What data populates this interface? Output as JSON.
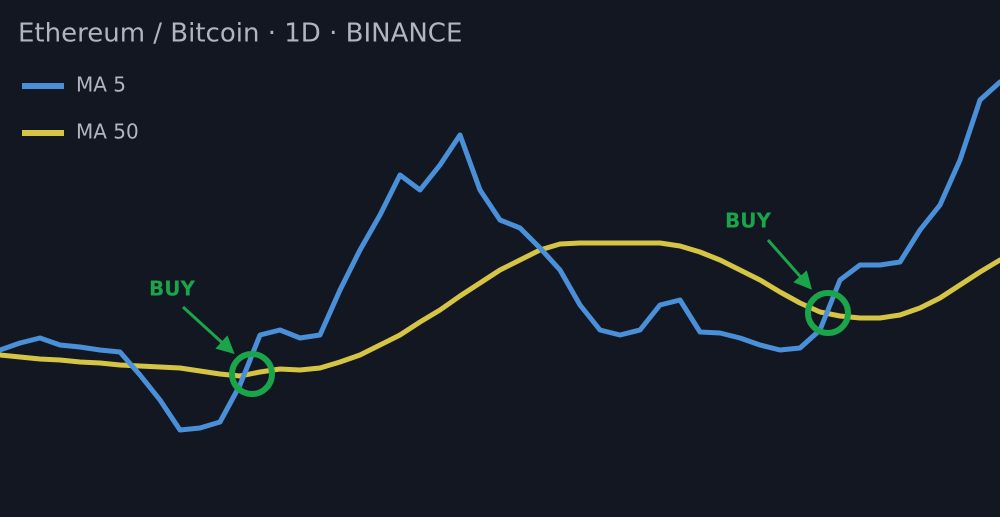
{
  "chart_data": {
    "type": "line",
    "title": "Ethereum / Bitcoin · 1D · BINANCE",
    "categories": [
      null,
      null,
      null,
      null,
      null,
      null,
      null,
      null,
      null,
      null,
      null,
      null,
      null,
      null,
      null,
      null,
      null,
      null,
      null,
      null,
      null,
      null,
      null,
      null,
      null,
      null,
      null,
      null,
      null,
      null,
      null,
      null,
      null,
      null,
      null,
      null,
      null,
      null,
      null,
      null,
      null,
      null,
      null,
      null,
      null,
      null,
      null,
      null,
      null,
      null,
      null
    ],
    "series": [
      {
        "name": "MA 5",
        "color": "#4a90d9",
        "values": [
          167,
          174,
          179,
          172,
          170,
          167,
          165,
          142,
          117,
          87,
          89,
          95,
          132,
          182,
          187,
          179,
          182,
          227,
          267,
          302,
          342,
          327,
          352,
          382,
          327,
          297,
          289,
          269,
          247,
          212,
          187,
          182,
          187,
          212,
          217,
          185,
          184,
          179,
          172,
          167,
          169,
          187,
          237,
          252,
          252,
          255,
          287,
          312,
          357,
          417,
          435
        ]
      },
      {
        "name": "MA 50",
        "color": "#d6c545",
        "values": [
          162,
          160,
          158,
          157,
          155,
          154,
          152,
          151,
          150,
          149,
          146,
          143,
          141,
          145,
          148,
          147,
          149,
          155,
          162,
          172,
          182,
          195,
          207,
          221,
          234,
          247,
          257,
          267,
          273,
          274,
          274,
          274,
          274,
          274,
          271,
          265,
          257,
          247,
          237,
          225,
          214,
          205,
          201,
          199,
          199,
          202,
          209,
          219,
          232,
          245,
          257
        ]
      }
    ],
    "ylim": [
      0,
      517
    ],
    "annotations": [
      {
        "text": "BUY"
      },
      {
        "text": "BUY"
      }
    ],
    "annotation_color": "#1aa54a"
  }
}
